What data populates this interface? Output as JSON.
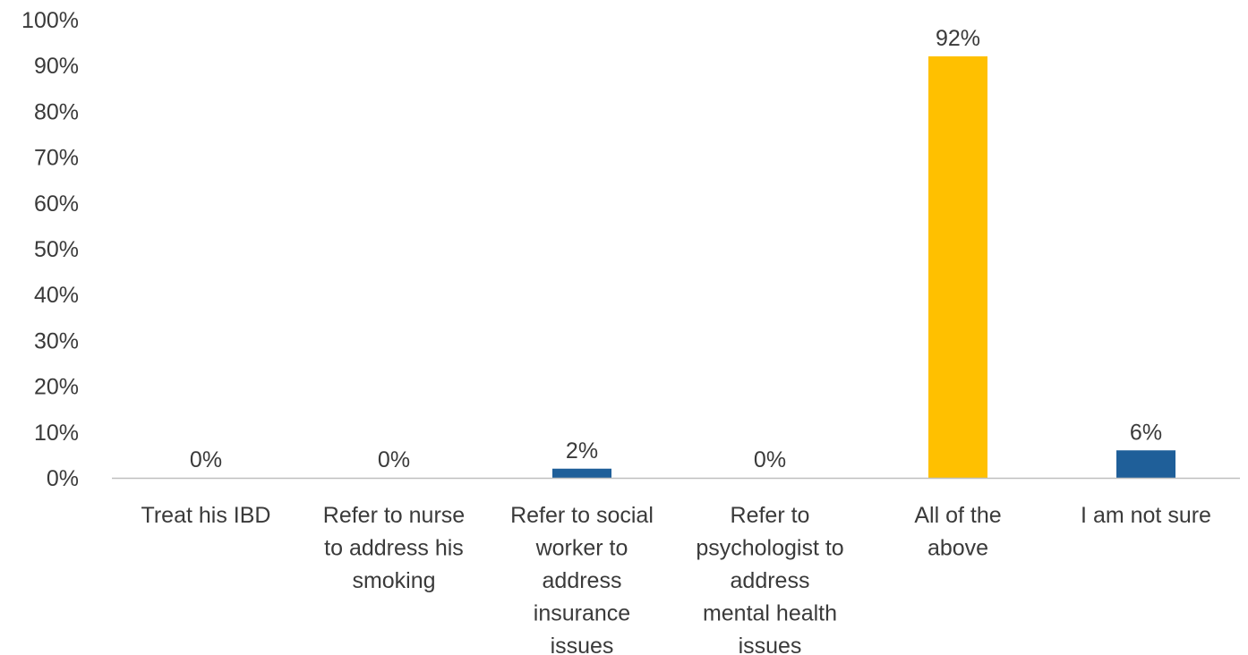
{
  "chart_data": {
    "type": "bar",
    "categories": [
      [
        "Treat his IBD"
      ],
      [
        "Refer to nurse",
        "to address his",
        "smoking"
      ],
      [
        "Refer to social",
        "worker to",
        "address",
        "insurance",
        "issues"
      ],
      [
        "Refer to",
        "psychologist to",
        "address",
        "mental health",
        "issues"
      ],
      [
        "All of the",
        "above"
      ],
      [
        "I am not sure"
      ]
    ],
    "values": [
      0,
      0,
      2,
      0,
      92,
      6
    ],
    "data_labels": [
      "0%",
      "0%",
      "2%",
      "0%",
      "92%",
      "6%"
    ],
    "bar_colors": [
      "#1f5f99",
      "#1f5f99",
      "#1f5f99",
      "#1f5f99",
      "#ffc000",
      "#1f5f99"
    ],
    "ylim": [
      0,
      100
    ],
    "yticks": [
      0,
      10,
      20,
      30,
      40,
      50,
      60,
      70,
      80,
      90,
      100
    ],
    "ytick_labels": [
      "0%",
      "10%",
      "20%",
      "30%",
      "40%",
      "50%",
      "60%",
      "70%",
      "80%",
      "90%",
      "100%"
    ],
    "grid": false,
    "title": "",
    "xlabel": "",
    "ylabel": ""
  },
  "colors": {
    "axis": "#bfbfbf",
    "text": "#3a3a3a",
    "primary_bar": "#1f5f99",
    "highlight_bar": "#ffc000"
  }
}
